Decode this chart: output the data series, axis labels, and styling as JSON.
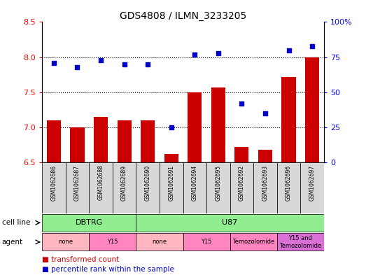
{
  "title": "GDS4808 / ILMN_3233205",
  "samples": [
    "GSM1062686",
    "GSM1062687",
    "GSM1062688",
    "GSM1062689",
    "GSM1062690",
    "GSM1062691",
    "GSM1062694",
    "GSM1062695",
    "GSM1062692",
    "GSM1062693",
    "GSM1062696",
    "GSM1062697"
  ],
  "red_values": [
    7.1,
    7.0,
    7.15,
    7.1,
    7.1,
    6.62,
    7.5,
    7.57,
    6.72,
    6.68,
    7.72,
    8.0
  ],
  "blue_values": [
    71,
    68,
    73,
    70,
    70,
    25,
    77,
    78,
    42,
    35,
    80,
    83
  ],
  "ylim_left": [
    6.5,
    8.5
  ],
  "ylim_right": [
    0,
    100
  ],
  "yticks_left": [
    6.5,
    7.0,
    7.5,
    8.0,
    8.5
  ],
  "yticks_right": [
    0,
    25,
    50,
    75,
    100
  ],
  "ytick_labels_right": [
    "0",
    "25",
    "50",
    "75",
    "100%"
  ],
  "hlines": [
    7.0,
    7.5,
    8.0
  ],
  "bar_color": "#CC0000",
  "dot_color": "#0000CC",
  "cell_line_groups": [
    {
      "label": "DBTRG",
      "start": 0,
      "end": 3,
      "color": "#90EE90"
    },
    {
      "label": "U87",
      "start": 4,
      "end": 11,
      "color": "#90EE90"
    }
  ],
  "agent_groups": [
    {
      "label": "none",
      "start": 0,
      "end": 1,
      "color": "#FFB6C1"
    },
    {
      "label": "Y15",
      "start": 2,
      "end": 3,
      "color": "#FF85C0"
    },
    {
      "label": "none",
      "start": 4,
      "end": 5,
      "color": "#FFB6C1"
    },
    {
      "label": "Y15",
      "start": 6,
      "end": 7,
      "color": "#FF85C0"
    },
    {
      "label": "Temozolomide",
      "start": 8,
      "end": 9,
      "color": "#FF85C0"
    },
    {
      "label": "Y15 and\nTemozolomide",
      "start": 10,
      "end": 11,
      "color": "#DA70D6"
    }
  ]
}
